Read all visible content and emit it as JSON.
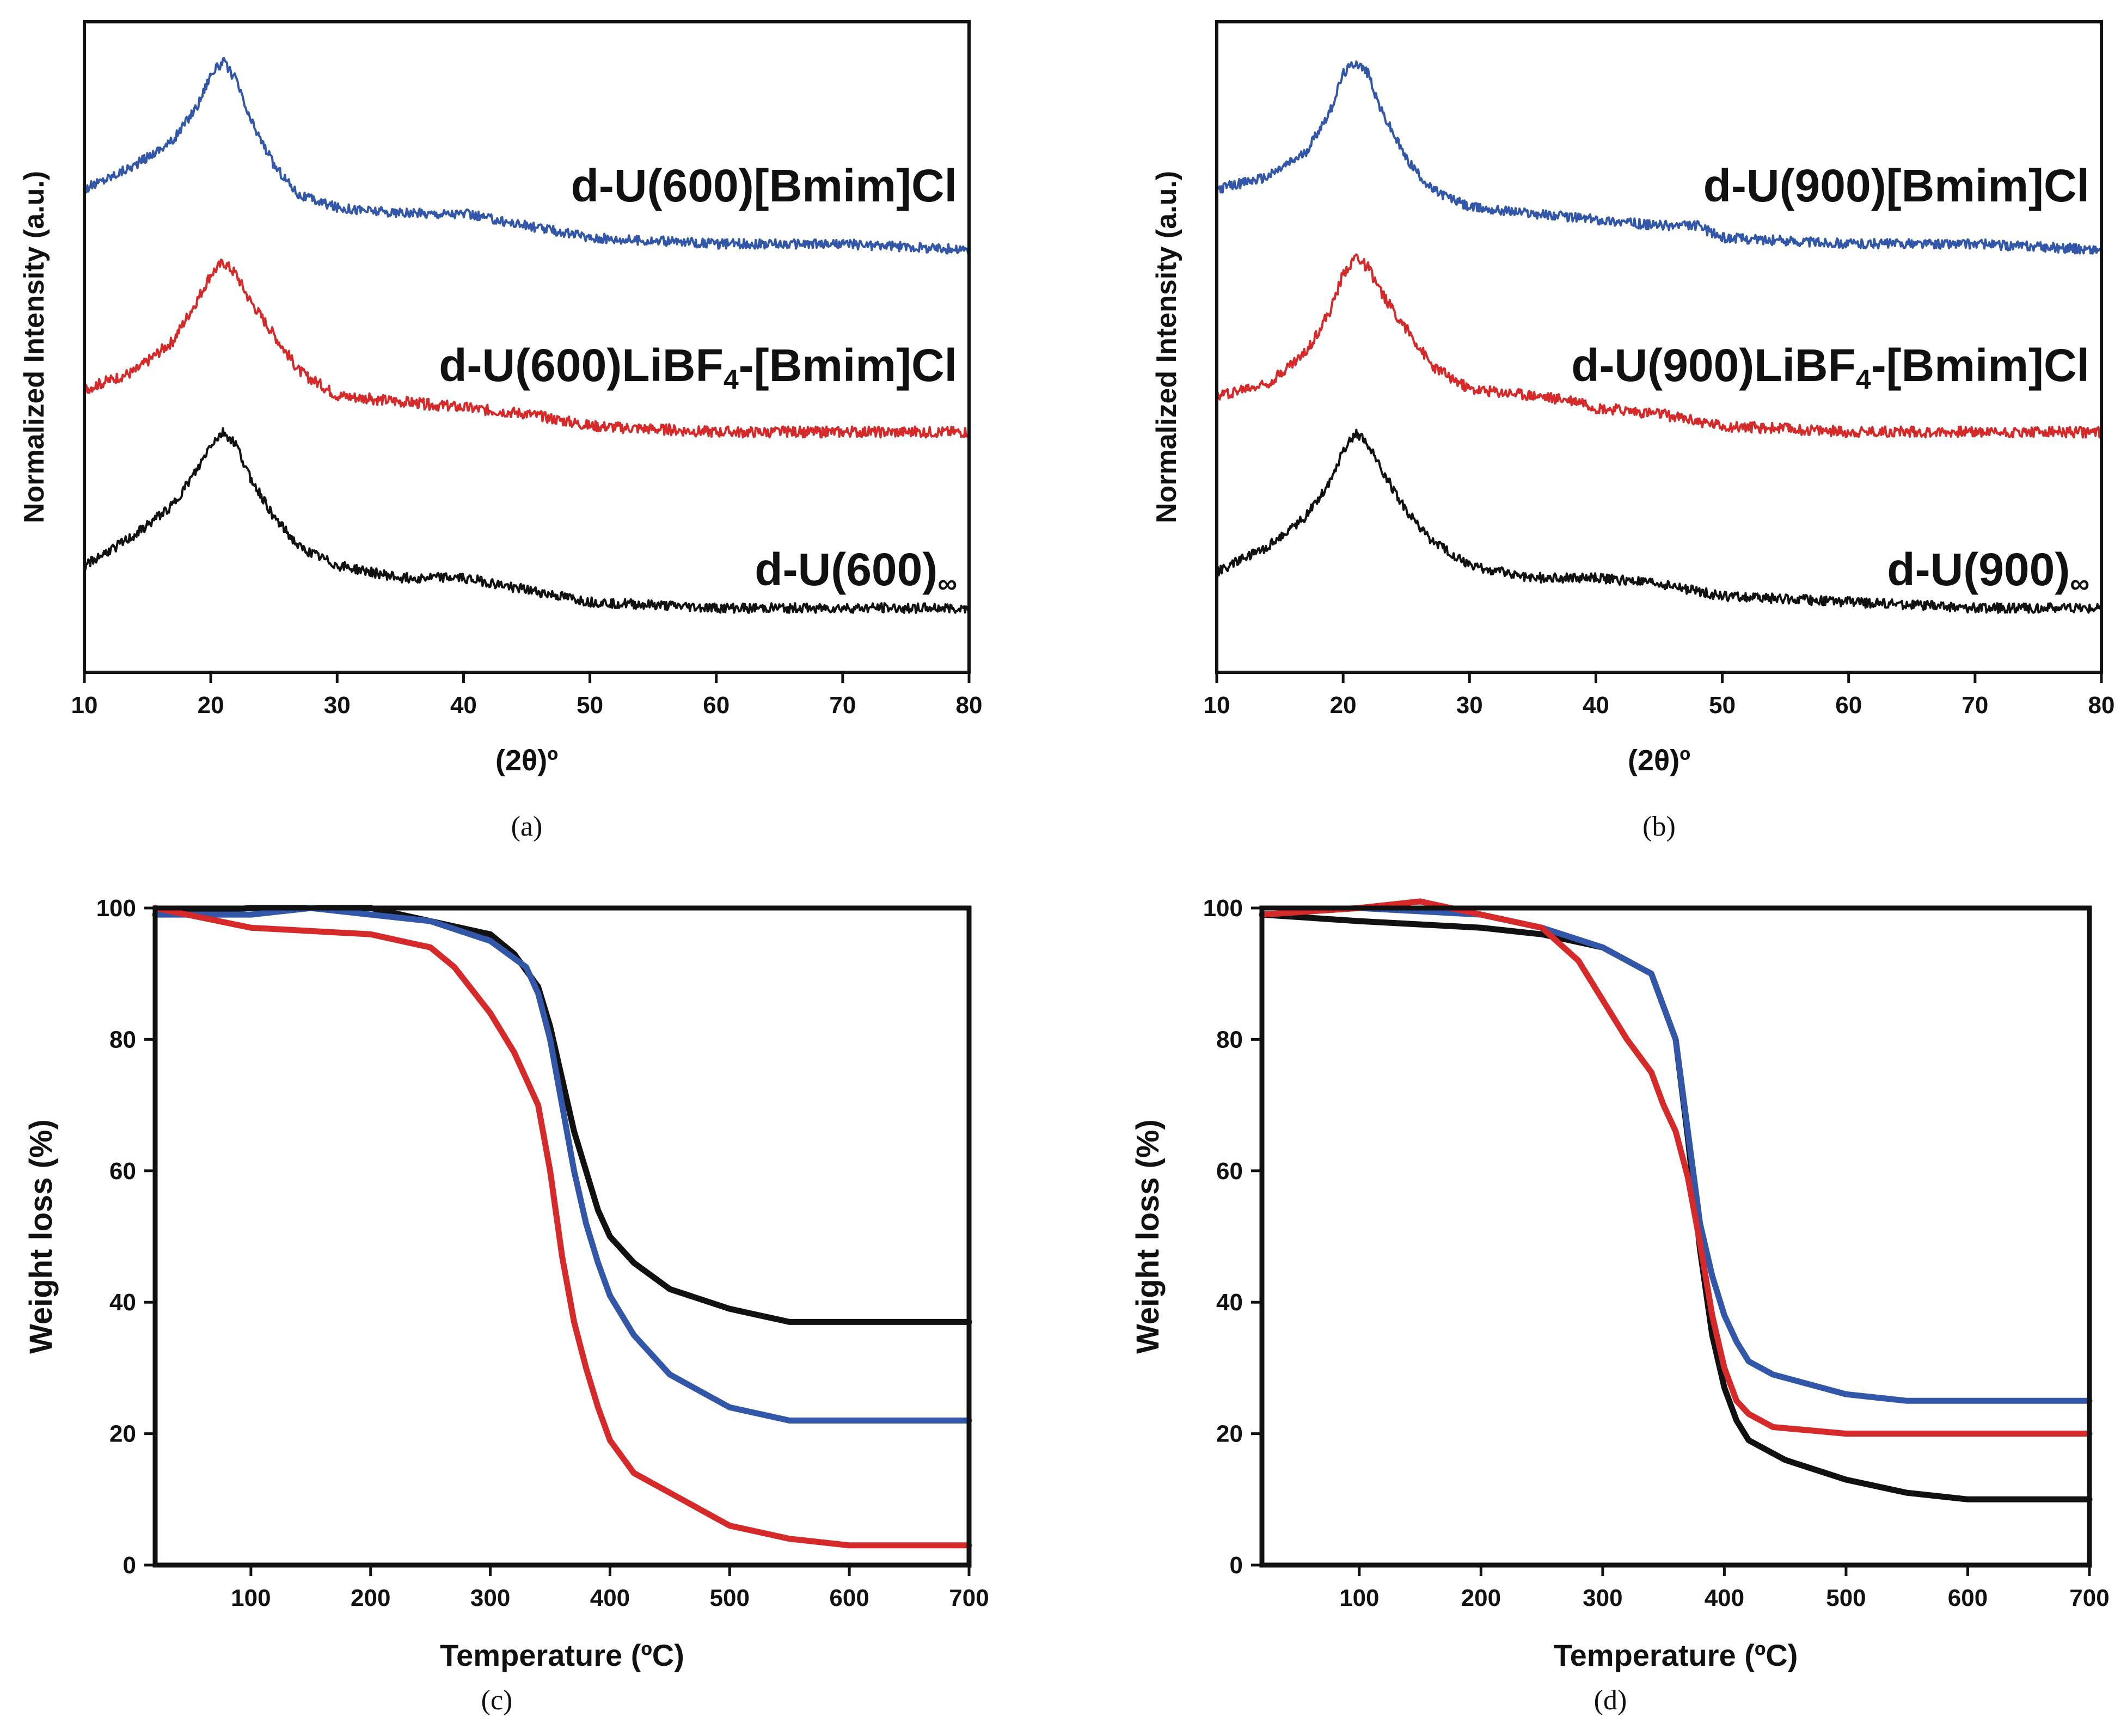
{
  "colors": {
    "black": "#111111",
    "red": "#d62a2a",
    "blue": "#3256a8"
  },
  "chart_data": [
    {
      "id": "a",
      "type": "line",
      "caption": "(a)",
      "xlabel": "(2θ)º",
      "ylabel": "Normalized Intensity (a.u.)",
      "xlim": [
        10,
        80
      ],
      "ylim": [
        0,
        100
      ],
      "xticks": [
        "10",
        "20",
        "30",
        "40",
        "50",
        "60",
        "70",
        "80"
      ],
      "series": [
        {
          "name": "d-U(600)[Bmim]Cl",
          "label_main": "d-U(600)[Bmim]Cl",
          "label_sub": "",
          "label_tail": "",
          "color": "blue",
          "x": [
            10,
            14,
            17,
            19,
            20,
            21,
            22,
            23,
            25,
            27,
            30,
            35,
            40,
            45,
            50,
            60,
            70,
            80
          ],
          "y": [
            76,
            80,
            84,
            90,
            95,
            97,
            94,
            88,
            80,
            75,
            73,
            72,
            72,
            70,
            68,
            67,
            67,
            66
          ]
        },
        {
          "name": "d-U(600)LiBF4-[Bmim]Cl",
          "label_main": "d-U(600)LiBF",
          "label_sub": "4",
          "label_tail": "-[Bmim]Cl",
          "color": "red",
          "x": [
            10,
            14,
            17,
            19,
            20,
            21,
            22,
            23,
            25,
            27,
            30,
            35,
            40,
            45,
            50,
            60,
            70,
            80
          ],
          "y": [
            43,
            46,
            51,
            58,
            62,
            64,
            62,
            58,
            52,
            46,
            42,
            41,
            40,
            39,
            37,
            36,
            36,
            36
          ]
        },
        {
          "name": "d-U(600)∞",
          "label_main": "d-U(600)",
          "label_sub": "∞",
          "label_tail": "",
          "color": "black",
          "x": [
            10,
            14,
            17,
            19,
            20,
            21,
            22,
            23,
            25,
            27,
            30,
            35,
            40,
            45,
            50,
            60,
            70,
            80
          ],
          "y": [
            14,
            19,
            24,
            30,
            34,
            36,
            34,
            29,
            22,
            17,
            14,
            12,
            12,
            10,
            8,
            7,
            7,
            7
          ]
        }
      ]
    },
    {
      "id": "b",
      "type": "line",
      "caption": "(b)",
      "xlabel": "(2θ)º",
      "ylabel": "Normalized Intensity (a.u.)",
      "xlim": [
        10,
        80
      ],
      "ylim": [
        0,
        100
      ],
      "xticks": [
        "10",
        "20",
        "30",
        "40",
        "50",
        "60",
        "70",
        "80"
      ],
      "series": [
        {
          "name": "d-U(900)[Bmim]Cl",
          "label_main": "d-U(900)[Bmim]Cl",
          "label_sub": "",
          "label_tail": "",
          "color": "blue",
          "x": [
            10,
            14,
            17,
            19,
            20,
            21,
            22,
            23,
            25,
            27,
            29,
            30,
            35,
            40,
            45,
            48,
            50,
            60,
            70,
            80
          ],
          "y": [
            76,
            78,
            82,
            89,
            95,
            97,
            95,
            89,
            81,
            76,
            74,
            73,
            72,
            71,
            70,
            70,
            68,
            67,
            67,
            66
          ]
        },
        {
          "name": "d-U(900)LiBF4-[Bmim]Cl",
          "label_main": "d-U(900)LiBF",
          "label_sub": "4",
          "label_tail": "-[Bmim]Cl",
          "color": "red",
          "x": [
            10,
            14,
            17,
            19,
            20,
            21,
            22,
            23,
            25,
            27,
            30,
            35,
            39,
            40,
            45,
            50,
            60,
            70,
            80
          ],
          "y": [
            42,
            44,
            49,
            56,
            62,
            65,
            63,
            59,
            53,
            47,
            43,
            42,
            41,
            40,
            39,
            37,
            36,
            36,
            36
          ]
        },
        {
          "name": "d-U(900)∞",
          "label_main": "d-U(900)",
          "label_sub": "∞",
          "label_tail": "",
          "color": "black",
          "x": [
            10,
            14,
            17,
            19,
            20,
            21,
            22,
            23,
            25,
            27,
            30,
            35,
            40,
            45,
            50,
            60,
            70,
            80
          ],
          "y": [
            13,
            17,
            22,
            28,
            33,
            36,
            34,
            30,
            23,
            18,
            14,
            12,
            12,
            11,
            9,
            8,
            7,
            7
          ]
        }
      ]
    },
    {
      "id": "c",
      "type": "line",
      "caption": "(c)",
      "xlabel": "Temperature (ºC)",
      "ylabel": "Weight loss (%)",
      "xlim": [
        20,
        700
      ],
      "ylim": [
        0,
        100
      ],
      "xticks": [
        "100",
        "200",
        "300",
        "400",
        "500",
        "600",
        "700"
      ],
      "yticks": [
        "0",
        "20",
        "40",
        "60",
        "80",
        "100"
      ],
      "series": [
        {
          "name": "black",
          "color": "black",
          "x": [
            20,
            100,
            200,
            250,
            300,
            320,
            340,
            350,
            360,
            370,
            380,
            390,
            400,
            420,
            450,
            500,
            550,
            600,
            700
          ],
          "y": [
            99,
            100,
            100,
            98,
            96,
            93,
            88,
            82,
            74,
            66,
            60,
            54,
            50,
            46,
            42,
            39,
            37,
            37,
            37
          ]
        },
        {
          "name": "blue",
          "color": "blue",
          "x": [
            20,
            100,
            150,
            200,
            250,
            300,
            330,
            340,
            350,
            360,
            370,
            380,
            390,
            400,
            420,
            450,
            500,
            550,
            600,
            700
          ],
          "y": [
            99,
            99,
            100,
            99,
            98,
            95,
            91,
            87,
            80,
            70,
            60,
            52,
            46,
            41,
            35,
            29,
            24,
            22,
            22,
            22
          ]
        },
        {
          "name": "red",
          "color": "red",
          "x": [
            20,
            100,
            200,
            250,
            270,
            300,
            320,
            340,
            350,
            360,
            370,
            380,
            390,
            400,
            420,
            450,
            480,
            500,
            550,
            600,
            700
          ],
          "y": [
            100,
            97,
            96,
            94,
            91,
            84,
            78,
            70,
            60,
            47,
            37,
            30,
            24,
            19,
            14,
            11,
            8,
            6,
            4,
            3,
            3
          ]
        }
      ]
    },
    {
      "id": "d",
      "type": "line",
      "caption": "(d)",
      "xlabel": "Temperature (ºC)",
      "ylabel": "Weight loss (%)",
      "xlim": [
        20,
        700
      ],
      "ylim": [
        0,
        100
      ],
      "xticks": [
        "100",
        "200",
        "300",
        "400",
        "500",
        "600",
        "700"
      ],
      "yticks": [
        "0",
        "20",
        "40",
        "60",
        "80",
        "100"
      ],
      "series": [
        {
          "name": "black",
          "color": "black",
          "x": [
            20,
            100,
            200,
            250,
            300,
            340,
            360,
            370,
            380,
            390,
            400,
            410,
            420,
            450,
            500,
            550,
            600,
            700
          ],
          "y": [
            99,
            98,
            97,
            96,
            94,
            90,
            80,
            65,
            48,
            35,
            27,
            22,
            19,
            16,
            13,
            11,
            10,
            10
          ]
        },
        {
          "name": "blue",
          "color": "blue",
          "x": [
            20,
            100,
            200,
            250,
            300,
            340,
            360,
            370,
            380,
            390,
            400,
            410,
            420,
            440,
            500,
            550,
            600,
            700
          ],
          "y": [
            99,
            100,
            99,
            97,
            94,
            90,
            80,
            66,
            52,
            44,
            38,
            34,
            31,
            29,
            26,
            25,
            25,
            25
          ]
        },
        {
          "name": "red",
          "color": "red",
          "x": [
            20,
            100,
            150,
            200,
            250,
            280,
            300,
            320,
            340,
            350,
            360,
            370,
            380,
            390,
            400,
            410,
            420,
            440,
            500,
            550,
            600,
            700
          ],
          "y": [
            99,
            100,
            101,
            99,
            97,
            92,
            86,
            80,
            75,
            70,
            66,
            59,
            49,
            38,
            30,
            25,
            23,
            21,
            20,
            20,
            20,
            20
          ]
        }
      ]
    }
  ]
}
